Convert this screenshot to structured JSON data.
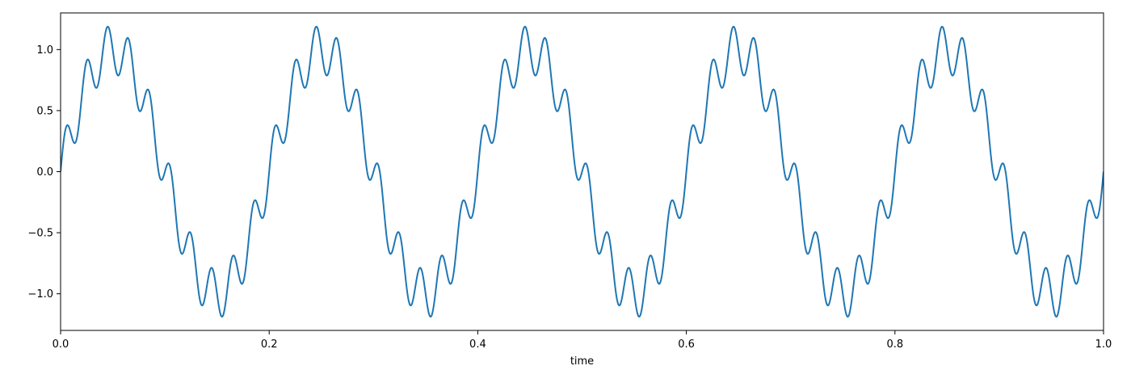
{
  "chart_data": {
    "type": "line",
    "title": "",
    "xlabel": "time",
    "ylabel": "",
    "xlim": [
      0.0,
      1.0
    ],
    "ylim": [
      -1.3,
      1.3
    ],
    "x_ticks": [
      0.0,
      0.2,
      0.4,
      0.6,
      0.8,
      1.0
    ],
    "x_tick_labels": [
      "0.0",
      "0.2",
      "0.4",
      "0.6",
      "0.8",
      "1.0"
    ],
    "y_ticks": [
      -1.0,
      -0.5,
      0.0,
      0.5,
      1.0
    ],
    "y_tick_labels": [
      "−1.0",
      "−0.5",
      "0.0",
      "0.5",
      "1.0"
    ],
    "grid": false,
    "legend": "none",
    "line_color": "#1f77b4",
    "series": [
      {
        "signal": "sum_of_sines",
        "components": [
          {
            "frequency_hz": 5,
            "amplitude": 1.0
          },
          {
            "frequency_hz": 50,
            "amplitude": 0.2
          }
        ],
        "x_start": 0.0,
        "x_end": 1.0,
        "sample_rate": 2000
      }
    ]
  }
}
